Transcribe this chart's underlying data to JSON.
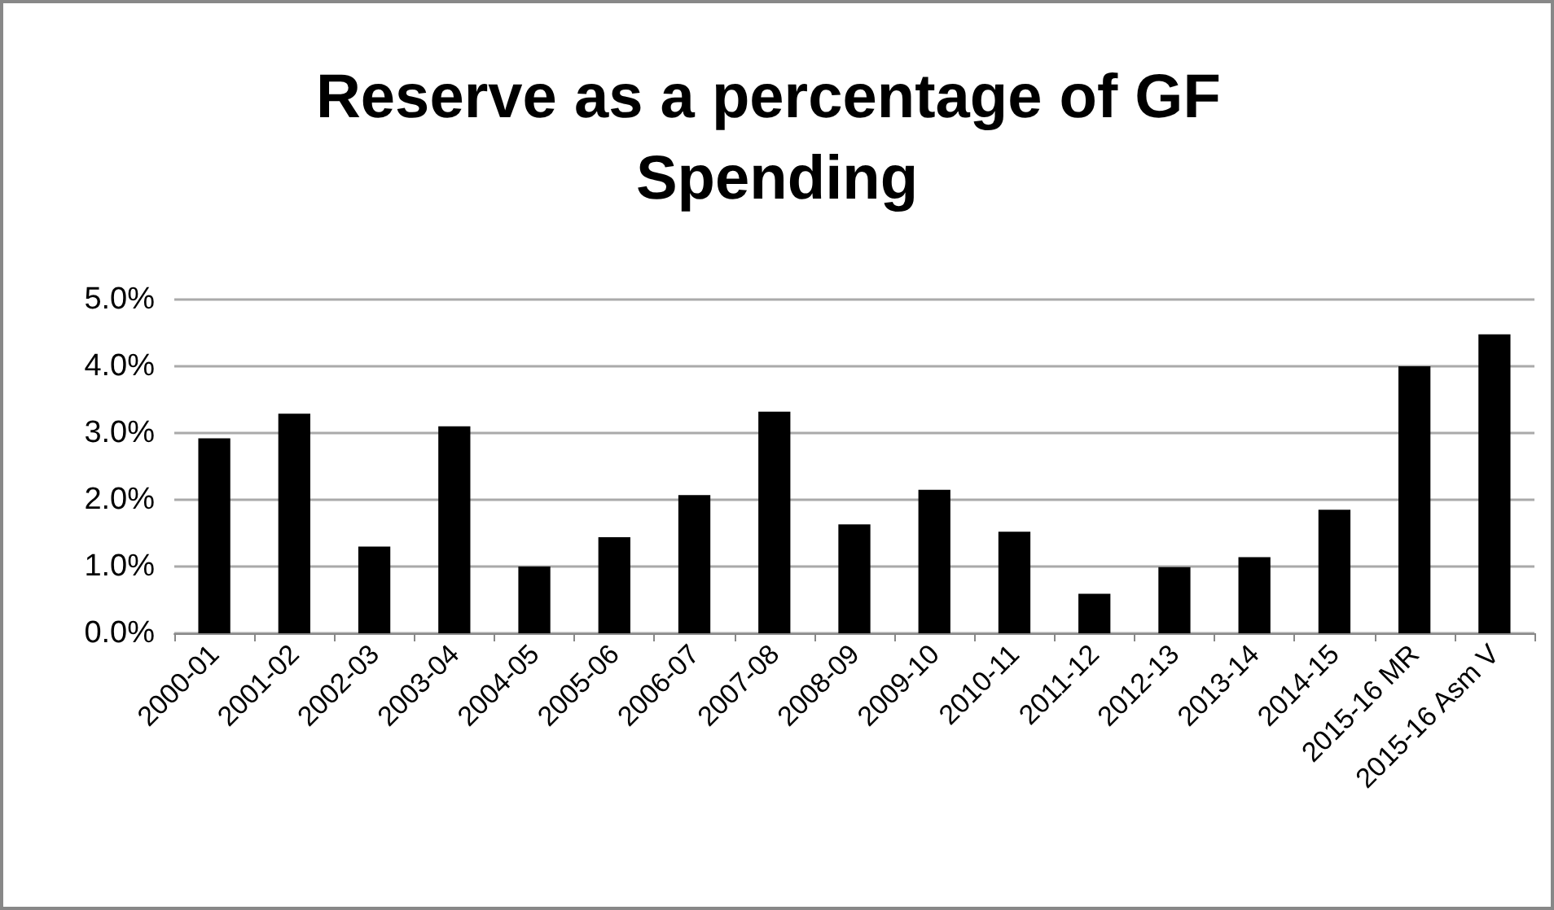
{
  "chart_data": {
    "type": "bar",
    "title": "Reserve as a percentage of GF Spending",
    "categories": [
      "2000-01",
      "2001-02",
      "2002-03",
      "2003-04",
      "2004-05",
      "2005-06",
      "2006-07",
      "2007-08",
      "2008-09",
      "2009-10",
      "2010-11",
      "2011-12",
      "2012-13",
      "2013-14",
      "2014-15",
      "2015-16 MR",
      "2015-16 Asm V"
    ],
    "values": [
      2.92,
      3.29,
      1.3,
      3.1,
      1.0,
      1.44,
      2.07,
      3.32,
      1.63,
      2.15,
      1.52,
      0.59,
      0.99,
      1.14,
      1.85,
      4.0,
      4.48
    ],
    "color": "#000000",
    "ylim": [
      0,
      5
    ],
    "yticks": [
      {
        "value": 0,
        "label": "0.0%"
      },
      {
        "value": 1,
        "label": "1.0%"
      },
      {
        "value": 2,
        "label": "2.0%"
      },
      {
        "value": 3,
        "label": "3.0%"
      },
      {
        "value": 4,
        "label": "4.0%"
      },
      {
        "value": 5,
        "label": "5.0%"
      }
    ],
    "grid": "y"
  }
}
